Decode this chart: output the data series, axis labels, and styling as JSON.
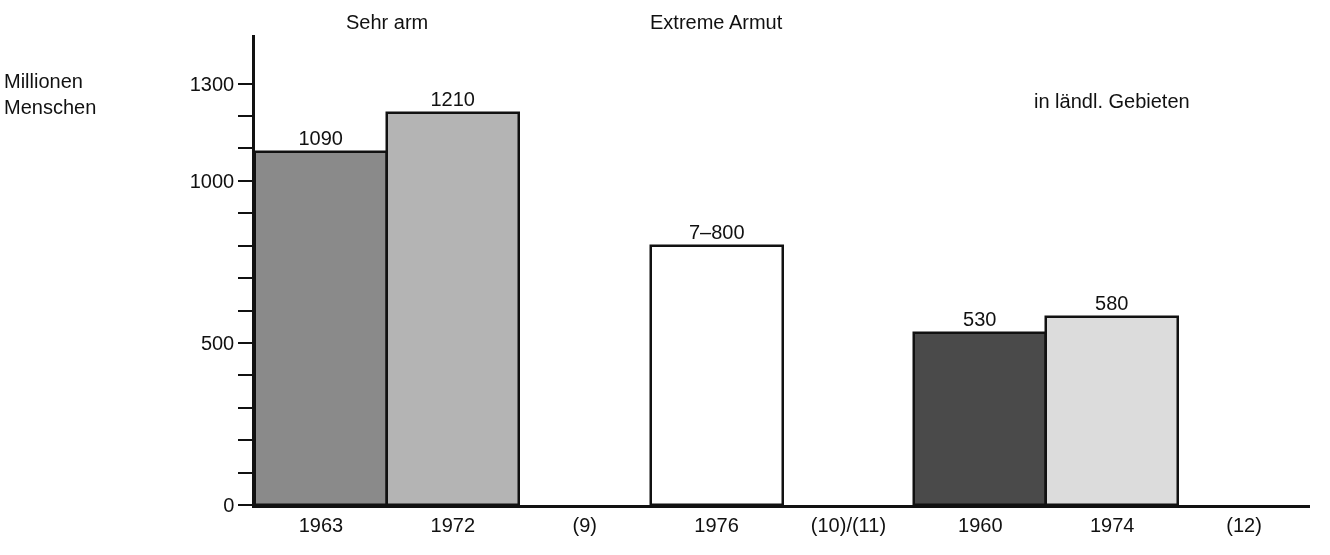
{
  "chart_data": {
    "type": "bar",
    "ylabel": "Millionen Menschen",
    "categories": [
      "1963",
      "1972",
      "(9)",
      "1976",
      "(10)/(11)",
      "1960",
      "1974",
      "(12)"
    ],
    "values": [
      1090,
      1210,
      null,
      800,
      null,
      530,
      580,
      null
    ],
    "value_labels": [
      "1090",
      "1210",
      null,
      "7–800",
      null,
      "530",
      "580",
      null
    ],
    "colors": [
      "#8a8a8a",
      "#b4b4b4",
      "#ffffff",
      "#ffffff",
      "#ffffff",
      "#4a4a4a",
      "#dcdcdc",
      "#ffffff"
    ],
    "ylim": [
      0,
      1450
    ],
    "yticks": [
      0,
      {
        "value": 100,
        "label": null
      },
      {
        "value": 200,
        "label": null
      },
      {
        "value": 300,
        "label": null
      },
      {
        "value": 400,
        "label": null
      },
      500,
      {
        "value": 600,
        "label": null
      },
      {
        "value": 700,
        "label": null
      },
      {
        "value": 800,
        "label": null
      },
      {
        "value": 900,
        "label": null
      },
      1000,
      {
        "value": 1100,
        "label": null
      },
      {
        "value": 1200,
        "label": null
      },
      1300
    ],
    "annotations": [
      "Sehr arm",
      "Extreme Armut",
      "in ländl. Gebieten"
    ],
    "grid": false
  }
}
